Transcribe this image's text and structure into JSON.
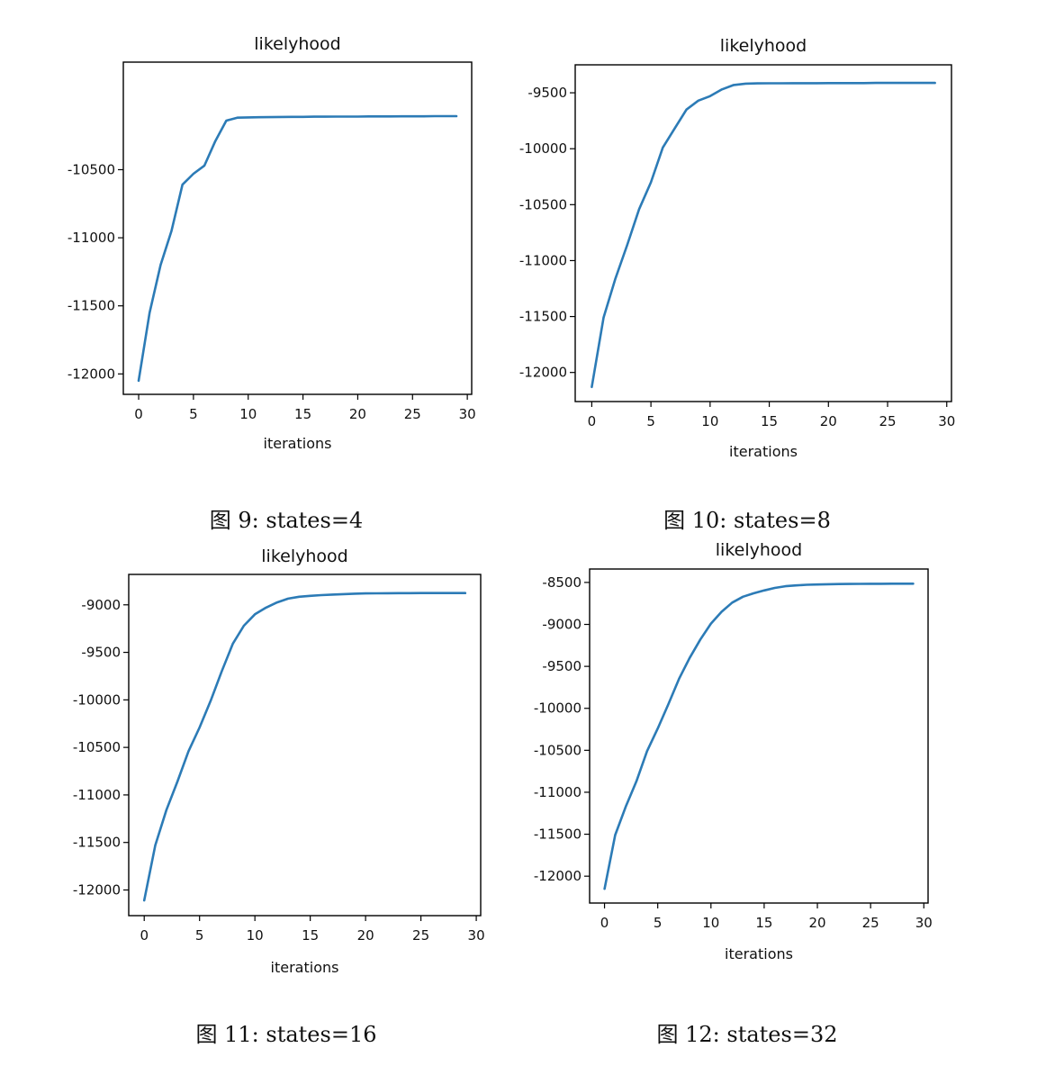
{
  "colors": {
    "line": "#2c7bb6"
  },
  "chart_data": [
    {
      "type": "line",
      "title": "likelyhood",
      "xlabel": "iterations",
      "ylabel": "",
      "caption": "图 9: states=4",
      "xlim": [
        -1.4,
        30.4
      ],
      "ylim": [
        -12150,
        -9710
      ],
      "xticks": [
        0,
        5,
        10,
        15,
        20,
        25,
        30
      ],
      "yticks": [
        -12000,
        -11500,
        -11000,
        -10500
      ],
      "x": [
        0,
        1,
        2,
        3,
        4,
        5,
        6,
        7,
        8,
        9,
        10,
        11,
        12,
        13,
        14,
        15,
        16,
        17,
        18,
        19,
        20,
        21,
        22,
        23,
        24,
        25,
        26,
        27,
        28,
        29
      ],
      "series": [
        {
          "values": [
            -12050,
            -11550,
            -11200,
            -10950,
            -10610,
            -10530,
            -10470,
            -10290,
            -10140,
            -10118,
            -10116,
            -10115,
            -10114,
            -10113,
            -10112,
            -10112,
            -10111,
            -10111,
            -10110,
            -10110,
            -10110,
            -10109,
            -10109,
            -10109,
            -10108,
            -10108,
            -10108,
            -10107,
            -10107,
            -10107
          ]
        }
      ],
      "grid": false
    },
    {
      "type": "line",
      "title": "likelyhood",
      "xlabel": "iterations",
      "ylabel": "",
      "caption": "图 10: states=8",
      "xlim": [
        -1.4,
        30.4
      ],
      "ylim": [
        -12260,
        -9250
      ],
      "xticks": [
        0,
        5,
        10,
        15,
        20,
        25,
        30
      ],
      "yticks": [
        -12000,
        -11500,
        -11000,
        -10500,
        -10000,
        -9500
      ],
      "x": [
        0,
        1,
        2,
        3,
        4,
        5,
        6,
        7,
        8,
        9,
        10,
        11,
        12,
        13,
        14,
        15,
        16,
        17,
        18,
        19,
        20,
        21,
        22,
        23,
        24,
        25,
        26,
        27,
        28,
        29
      ],
      "series": [
        {
          "values": [
            -12130,
            -11510,
            -11160,
            -10860,
            -10540,
            -10300,
            -9990,
            -9820,
            -9650,
            -9570,
            -9530,
            -9470,
            -9430,
            -9418,
            -9416,
            -9415,
            -9415,
            -9414,
            -9414,
            -9414,
            -9413,
            -9413,
            -9413,
            -9413,
            -9412,
            -9412,
            -9412,
            -9412,
            -9412,
            -9412
          ]
        }
      ],
      "grid": false
    },
    {
      "type": "line",
      "title": "likelyhood",
      "xlabel": "iterations",
      "ylabel": "",
      "caption": "图 11: states=16",
      "xlim": [
        -1.4,
        30.4
      ],
      "ylim": [
        -12270,
        -8680
      ],
      "xticks": [
        0,
        5,
        10,
        15,
        20,
        25,
        30
      ],
      "yticks": [
        -12000,
        -11500,
        -11000,
        -10500,
        -10000,
        -9500,
        -9000
      ],
      "x": [
        0,
        1,
        2,
        3,
        4,
        5,
        6,
        7,
        8,
        9,
        10,
        11,
        12,
        13,
        14,
        15,
        16,
        17,
        18,
        19,
        20,
        21,
        22,
        23,
        24,
        25,
        26,
        27,
        28,
        29
      ],
      "series": [
        {
          "values": [
            -12110,
            -11530,
            -11160,
            -10860,
            -10540,
            -10290,
            -10010,
            -9700,
            -9410,
            -9220,
            -9100,
            -9030,
            -8975,
            -8935,
            -8915,
            -8905,
            -8898,
            -8892,
            -8887,
            -8883,
            -8880,
            -8879,
            -8878,
            -8877,
            -8877,
            -8876,
            -8876,
            -8876,
            -8876,
            -8876
          ]
        }
      ],
      "grid": false
    },
    {
      "type": "line",
      "title": "likelyhood",
      "xlabel": "iterations",
      "ylabel": "",
      "caption": "图 12: states=32",
      "xlim": [
        -1.4,
        30.4
      ],
      "ylim": [
        -12320,
        -8340
      ],
      "xticks": [
        0,
        5,
        10,
        15,
        20,
        25,
        30
      ],
      "yticks": [
        -12000,
        -11500,
        -11000,
        -10500,
        -10000,
        -9500,
        -9000,
        -8500
      ],
      "x": [
        0,
        1,
        2,
        3,
        4,
        5,
        6,
        7,
        8,
        9,
        10,
        11,
        12,
        13,
        14,
        15,
        16,
        17,
        18,
        19,
        20,
        21,
        22,
        23,
        24,
        25,
        26,
        27,
        28,
        29
      ],
      "series": [
        {
          "values": [
            -12150,
            -11510,
            -11170,
            -10870,
            -10510,
            -10240,
            -9950,
            -9650,
            -9400,
            -9180,
            -8990,
            -8850,
            -8740,
            -8670,
            -8630,
            -8595,
            -8565,
            -8545,
            -8535,
            -8528,
            -8524,
            -8521,
            -8519,
            -8518,
            -8517,
            -8516,
            -8516,
            -8515,
            -8515,
            -8515
          ]
        }
      ],
      "grid": false
    }
  ]
}
